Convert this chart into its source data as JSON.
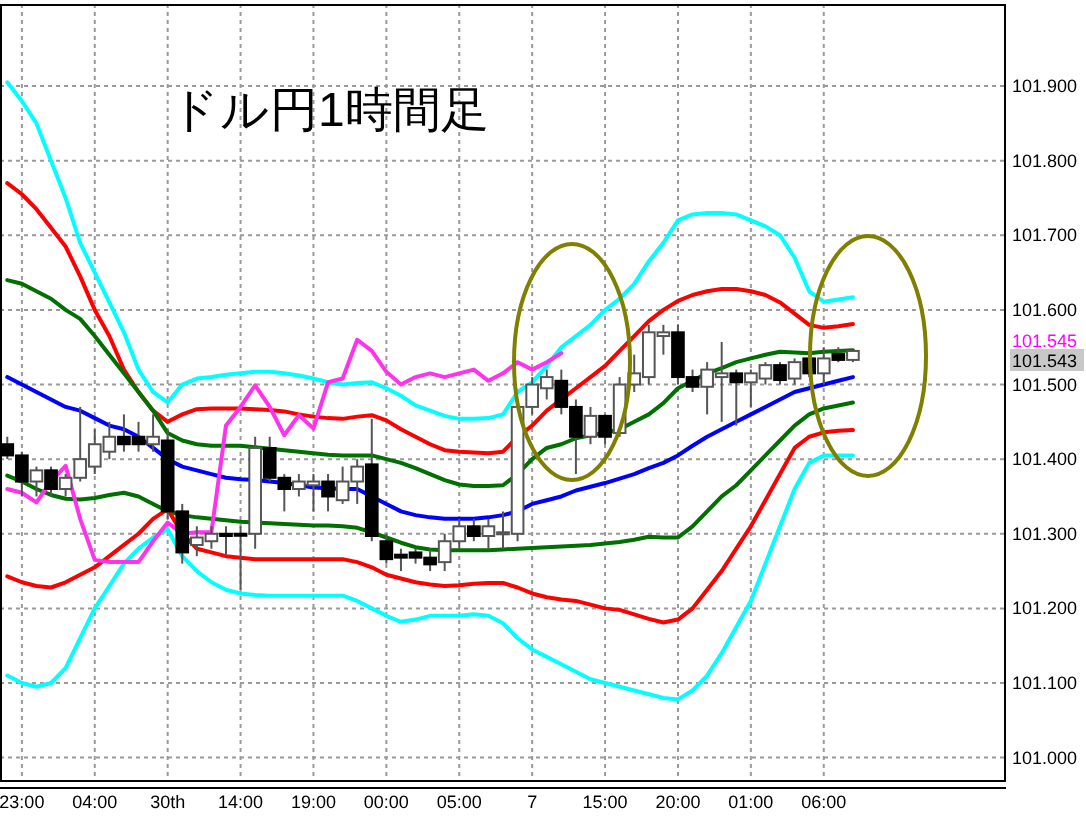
{
  "chart_data": {
    "type": "candlestick",
    "title": "ドル円1時間足",
    "categories": [
      null,
      "23:00",
      null,
      null,
      null,
      null,
      "04:00",
      null,
      null,
      null,
      null,
      "30th",
      null,
      null,
      null,
      null,
      "14:00",
      null,
      null,
      null,
      null,
      "19:00",
      null,
      null,
      null,
      null,
      "00:00",
      null,
      null,
      null,
      null,
      "05:00",
      null,
      null,
      null,
      null,
      "7",
      null,
      null,
      null,
      null,
      "15:00",
      null,
      null,
      null,
      null,
      "20:00",
      null,
      null,
      null,
      null,
      "01:00",
      null,
      null,
      null,
      null,
      "06:00",
      null,
      null,
      null,
      null,
      null,
      null,
      null,
      null,
      null,
      null,
      null,
      null
    ],
    "ohlc": [
      [
        101.42,
        101.43,
        101.4,
        101.405
      ],
      [
        101.405,
        101.41,
        101.35,
        101.37
      ],
      [
        101.37,
        101.39,
        101.35,
        101.385
      ],
      [
        101.385,
        101.39,
        101.35,
        101.36
      ],
      [
        101.36,
        101.38,
        101.35,
        101.375
      ],
      [
        101.375,
        101.47,
        101.37,
        101.4
      ],
      [
        101.39,
        101.44,
        101.38,
        101.42
      ],
      [
        101.41,
        101.45,
        101.4,
        101.43
      ],
      [
        101.43,
        101.46,
        101.41,
        101.42
      ],
      [
        101.43,
        101.45,
        101.41,
        101.42
      ],
      [
        101.42,
        101.46,
        101.41,
        101.43
      ],
      [
        101.425,
        101.44,
        101.32,
        101.33
      ],
      [
        101.33,
        101.34,
        101.26,
        101.275
      ],
      [
        101.285,
        101.31,
        101.27,
        101.295
      ],
      [
        101.29,
        101.31,
        101.28,
        101.3
      ],
      [
        101.3,
        101.31,
        101.27,
        101.297
      ],
      [
        101.3,
        101.31,
        101.225,
        101.298
      ],
      [
        101.3,
        101.43,
        101.28,
        101.415
      ],
      [
        101.415,
        101.43,
        101.37,
        101.375
      ],
      [
        101.375,
        101.38,
        101.33,
        101.36
      ],
      [
        101.36,
        101.38,
        101.35,
        101.37
      ],
      [
        101.365,
        101.38,
        101.33,
        101.37
      ],
      [
        101.37,
        101.38,
        101.33,
        101.35
      ],
      [
        101.345,
        101.39,
        101.34,
        101.37
      ],
      [
        101.37,
        101.4,
        101.34,
        101.39
      ],
      [
        101.393,
        101.454,
        101.29,
        101.297
      ],
      [
        101.29,
        101.3,
        101.26,
        101.266
      ],
      [
        101.272,
        101.28,
        101.25,
        101.268
      ],
      [
        101.275,
        101.28,
        101.26,
        101.268
      ],
      [
        101.268,
        101.28,
        101.25,
        101.259
      ],
      [
        101.262,
        101.3,
        101.25,
        101.29
      ],
      [
        101.29,
        101.32,
        101.28,
        101.31
      ],
      [
        101.31,
        101.32,
        101.29,
        101.297
      ],
      [
        101.297,
        101.32,
        101.28,
        101.31
      ],
      [
        101.3,
        101.33,
        101.28,
        101.302
      ],
      [
        101.3,
        101.48,
        101.29,
        101.47
      ],
      [
        101.47,
        101.51,
        101.46,
        101.5
      ],
      [
        101.495,
        101.52,
        101.48,
        101.51
      ],
      [
        101.505,
        101.52,
        101.46,
        101.47
      ],
      [
        101.47,
        101.48,
        101.38,
        101.43
      ],
      [
        101.43,
        101.47,
        101.42,
        101.458
      ],
      [
        101.458,
        101.46,
        101.42,
        101.43
      ],
      [
        101.435,
        101.51,
        101.43,
        101.5
      ],
      [
        101.5,
        101.54,
        101.49,
        101.515
      ],
      [
        101.51,
        101.58,
        101.5,
        101.57
      ],
      [
        101.565,
        101.58,
        101.54,
        101.57
      ],
      [
        101.57,
        101.58,
        101.5,
        101.51
      ],
      [
        101.51,
        101.52,
        101.49,
        101.497
      ],
      [
        101.497,
        101.53,
        101.46,
        101.52
      ],
      [
        101.51,
        101.557,
        101.45,
        101.515
      ],
      [
        101.515,
        101.52,
        101.445,
        101.503
      ],
      [
        101.503,
        101.52,
        101.47,
        101.515
      ],
      [
        101.508,
        101.53,
        101.5,
        101.526
      ],
      [
        101.526,
        101.53,
        101.5,
        101.506
      ],
      [
        101.508,
        101.535,
        101.5,
        101.53
      ],
      [
        101.535,
        101.54,
        101.51,
        101.515
      ],
      [
        101.515,
        101.55,
        101.5,
        101.535
      ],
      [
        101.541,
        101.55,
        101.53,
        101.533
      ],
      [
        101.533,
        101.546,
        101.53,
        101.545
      ],
      null,
      null,
      null,
      null,
      null,
      null,
      null,
      null,
      null,
      null
    ],
    "series": [
      {
        "type": "line",
        "color": "#00ffff",
        "values": [
          101.905,
          101.88,
          101.85,
          101.8,
          101.75,
          101.69,
          101.65,
          101.61,
          101.57,
          101.52,
          101.49,
          101.476,
          101.5,
          101.508,
          101.51,
          101.513,
          101.515,
          101.517,
          101.517,
          101.515,
          101.512,
          101.508,
          101.503,
          101.5,
          101.502,
          101.503,
          101.495,
          101.485,
          101.472,
          101.465,
          101.458,
          101.454,
          101.454,
          101.455,
          101.46,
          101.49,
          101.503,
          101.525,
          101.55,
          101.565,
          101.58,
          101.6,
          101.615,
          101.635,
          101.665,
          101.69,
          101.72,
          101.728,
          101.73,
          101.73,
          101.728,
          101.72,
          101.712,
          101.7,
          101.67,
          101.625,
          101.611,
          101.614,
          101.617,
          null,
          null,
          null,
          null,
          null,
          null,
          null,
          null,
          null,
          null
        ]
      },
      {
        "type": "line",
        "color": "#ff0000",
        "values": [
          101.77,
          101.755,
          101.735,
          101.71,
          101.685,
          101.645,
          101.6,
          101.565,
          101.52,
          101.49,
          101.465,
          101.45,
          101.46,
          101.467,
          101.468,
          101.468,
          101.468,
          101.467,
          101.466,
          101.464,
          101.46,
          101.457,
          101.455,
          101.454,
          101.457,
          101.459,
          101.452,
          101.44,
          101.43,
          101.42,
          101.412,
          101.41,
          101.409,
          101.408,
          101.41,
          101.43,
          101.445,
          101.465,
          101.48,
          101.495,
          101.51,
          101.525,
          101.545,
          101.565,
          101.585,
          101.6,
          101.612,
          101.62,
          101.625,
          101.628,
          101.628,
          101.625,
          101.62,
          101.61,
          101.595,
          101.58,
          101.576,
          101.578,
          101.581,
          null,
          null,
          null,
          null,
          null,
          null,
          null,
          null,
          null,
          null
        ]
      },
      {
        "type": "line",
        "color": "#007000",
        "values": [
          101.64,
          101.635,
          101.625,
          101.615,
          101.6,
          101.588,
          101.565,
          101.54,
          101.515,
          101.49,
          101.465,
          101.435,
          101.425,
          101.42,
          101.418,
          101.418,
          101.418,
          101.416,
          101.414,
          101.412,
          101.41,
          101.408,
          101.406,
          101.405,
          101.405,
          101.405,
          101.4,
          101.395,
          101.388,
          101.38,
          101.372,
          101.366,
          101.364,
          101.364,
          101.365,
          101.38,
          101.4,
          101.415,
          101.42,
          101.428,
          101.432,
          101.435,
          101.44,
          101.45,
          101.46,
          101.475,
          101.495,
          101.505,
          101.515,
          101.522,
          101.53,
          101.535,
          101.54,
          101.544,
          101.543,
          101.542,
          101.544,
          101.545,
          101.546,
          null,
          null,
          null,
          null,
          null,
          null,
          null,
          null,
          null,
          null
        ]
      },
      {
        "type": "line",
        "color": "#0000ff",
        "values": [
          101.51,
          101.5,
          101.49,
          101.48,
          101.47,
          101.465,
          101.455,
          101.445,
          101.44,
          101.43,
          101.415,
          101.4,
          101.39,
          101.385,
          101.38,
          101.375,
          101.373,
          101.372,
          101.37,
          101.368,
          101.365,
          101.362,
          101.361,
          101.36,
          101.36,
          101.35,
          101.34,
          101.33,
          101.325,
          101.322,
          101.32,
          101.32,
          101.32,
          101.322,
          101.325,
          101.33,
          101.34,
          101.345,
          101.35,
          101.358,
          101.363,
          101.368,
          101.374,
          101.38,
          101.388,
          101.395,
          101.405,
          101.418,
          101.43,
          101.44,
          101.45,
          101.46,
          101.47,
          101.48,
          101.49,
          101.495,
          101.5,
          101.505,
          101.51,
          null,
          null,
          null,
          null,
          null,
          null,
          null,
          null,
          null,
          null
        ]
      },
      {
        "type": "line",
        "color": "#007000",
        "values": [
          101.378,
          101.37,
          101.36,
          101.352,
          101.347,
          101.346,
          101.348,
          101.352,
          101.355,
          101.35,
          101.34,
          101.33,
          101.325,
          101.322,
          101.32,
          101.318,
          101.316,
          101.315,
          101.314,
          101.313,
          101.312,
          101.311,
          101.311,
          101.31,
          101.308,
          101.302,
          101.295,
          101.288,
          101.282,
          101.279,
          101.278,
          101.278,
          101.278,
          101.278,
          101.279,
          101.28,
          101.281,
          101.282,
          101.283,
          101.284,
          101.285,
          101.287,
          101.289,
          101.292,
          101.296,
          101.295,
          101.295,
          101.31,
          101.33,
          101.35,
          101.365,
          101.385,
          101.405,
          101.425,
          101.445,
          101.46,
          101.468,
          101.472,
          101.476,
          null,
          null,
          null,
          null,
          null,
          null,
          null,
          null,
          null,
          null
        ]
      },
      {
        "type": "line",
        "color": "#ff0000",
        "values": [
          101.243,
          101.235,
          101.23,
          101.228,
          101.235,
          101.245,
          101.255,
          101.27,
          101.285,
          101.3,
          101.32,
          101.333,
          101.3,
          101.28,
          101.275,
          101.27,
          101.268,
          101.266,
          101.266,
          101.266,
          101.266,
          101.266,
          101.266,
          101.266,
          101.262,
          101.255,
          101.245,
          101.24,
          101.235,
          101.232,
          101.23,
          101.231,
          101.233,
          101.234,
          101.234,
          101.228,
          101.22,
          101.215,
          101.212,
          101.21,
          101.205,
          101.2,
          101.198,
          101.192,
          101.186,
          101.181,
          101.185,
          101.2,
          101.225,
          101.25,
          101.28,
          101.31,
          101.345,
          101.38,
          101.415,
          101.43,
          101.436,
          101.438,
          101.439,
          null,
          null,
          null,
          null,
          null,
          null,
          null,
          null,
          null,
          null
        ]
      },
      {
        "type": "line",
        "color": "#00ffff",
        "values": [
          101.11,
          101.1,
          101.095,
          101.1,
          101.12,
          101.16,
          101.2,
          101.23,
          101.26,
          101.28,
          101.295,
          101.306,
          101.27,
          101.25,
          101.235,
          101.225,
          101.22,
          101.218,
          101.217,
          101.217,
          101.217,
          101.217,
          101.217,
          101.217,
          101.21,
          101.2,
          101.19,
          101.182,
          101.185,
          101.19,
          101.19,
          101.19,
          101.192,
          101.19,
          101.18,
          101.16,
          101.145,
          101.135,
          101.125,
          101.115,
          101.105,
          101.1,
          101.095,
          101.09,
          101.085,
          101.08,
          101.078,
          101.09,
          101.11,
          101.14,
          101.175,
          101.21,
          101.26,
          101.31,
          101.36,
          101.395,
          101.405,
          101.405,
          101.405,
          null,
          null,
          null,
          null,
          null,
          null,
          null,
          null,
          null,
          null
        ]
      },
      {
        "type": "line",
        "color": "#ff33ee",
        "values": [
          101.36,
          101.355,
          101.342,
          101.37,
          101.391,
          101.32,
          101.265,
          101.262,
          101.262,
          101.262,
          101.29,
          101.315,
          101.3,
          101.302,
          101.302,
          101.445,
          101.47,
          101.499,
          101.47,
          101.432,
          101.459,
          101.441,
          101.503,
          101.508,
          101.56,
          101.545,
          101.517,
          101.5,
          101.51,
          101.515,
          101.51,
          101.515,
          101.52,
          101.505,
          101.515,
          101.53,
          101.52,
          101.53,
          101.542,
          null,
          null,
          null,
          null,
          null,
          null,
          null,
          null,
          null,
          null,
          null,
          null,
          null,
          null,
          null,
          null,
          null,
          null,
          null,
          null,
          null,
          null,
          null,
          null,
          null,
          null,
          null,
          null,
          null,
          null
        ]
      }
    ],
    "ylim": [
      100.97,
      102.01
    ],
    "yticks": [
      {
        "value": 101.0,
        "label": "101.000"
      },
      {
        "value": 101.1,
        "label": "101.100"
      },
      {
        "value": 101.2,
        "label": "101.200"
      },
      {
        "value": 101.3,
        "label": "101.300"
      },
      {
        "value": 101.4,
        "label": "101.400"
      },
      {
        "value": 101.5,
        "label": "101.500"
      },
      {
        "value": 101.6,
        "label": "101.600"
      },
      {
        "value": 101.7,
        "label": "101.700"
      },
      {
        "value": 101.8,
        "label": "101.800"
      },
      {
        "value": 101.9,
        "label": "101.900"
      }
    ],
    "grid": true,
    "annotations": [
      "101.545",
      "101.543"
    ]
  }
}
